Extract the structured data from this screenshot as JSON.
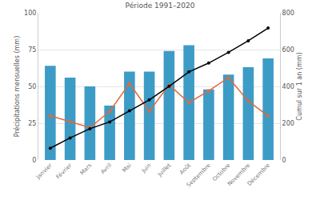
{
  "chart_data": {
    "type": "bar",
    "title": "Période 1991–2020",
    "categories": [
      "Janvier",
      "Février",
      "Mars",
      "Avril",
      "Mai",
      "Juin",
      "Juillet",
      "Août",
      "Septembre",
      "Octobre",
      "Novembre",
      "Décembre"
    ],
    "series": [
      {
        "type": "bar",
        "color": "#3d9cc6",
        "values": [
          64,
          56,
          50,
          37,
          60,
          60,
          74,
          78,
          48,
          58,
          63,
          69
        ]
      },
      {
        "type": "line",
        "color": "#e2693a",
        "marker": "circle",
        "line_style": "solid",
        "values": [
          30,
          26,
          22,
          33,
          52,
          33,
          51,
          39,
          47,
          56,
          40,
          30
        ]
      },
      {
        "type": "line",
        "color": "#000000",
        "marker": "circle",
        "line_style": "solid",
        "axis": "y2",
        "values": [
          64,
          120,
          170,
          207,
          267,
          327,
          401,
          479,
          527,
          585,
          648,
          717
        ]
      }
    ],
    "ylabel": "Précipitations mensuelles (mm)",
    "y2label": "Cumul sur 1 an (mm)",
    "ylim": [
      0,
      100
    ],
    "yticks": [
      0,
      25,
      50,
      75,
      100
    ],
    "y2lim": [
      0,
      800
    ],
    "y2ticks": [
      0,
      200,
      400,
      600,
      800
    ],
    "grid": true
  }
}
